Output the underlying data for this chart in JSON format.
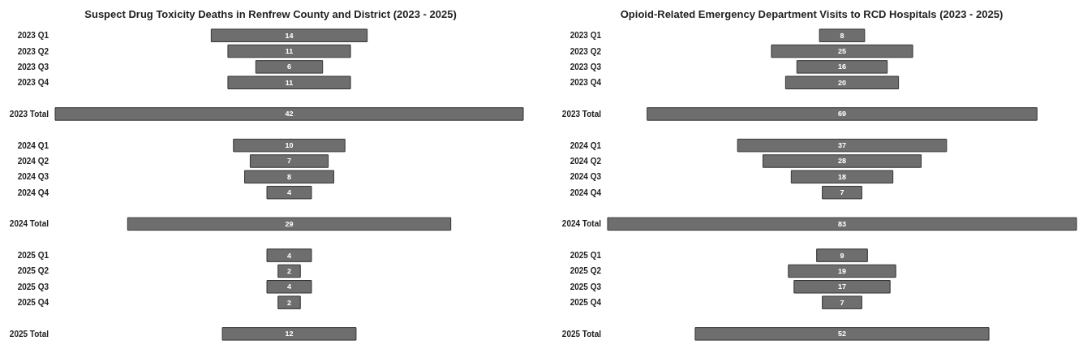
{
  "chart_data": [
    {
      "type": "other",
      "title": "Suspect Drug Toxicity Deaths in Renfrew County and District (2023 - 2025)",
      "data_labels": true,
      "categories": [
        "2023 Q1",
        "2023 Q2",
        "2023 Q3",
        "2023 Q4",
        null,
        "2023 Total",
        null,
        "2024 Q1",
        "2024 Q2",
        "2024 Q3",
        "2024 Q4",
        null,
        "2024 Total",
        null,
        "2025 Q1",
        "2025 Q2",
        "2025 Q3",
        "2025 Q4",
        null,
        "2025 Total"
      ],
      "values": [
        14,
        11,
        6,
        11,
        null,
        42,
        null,
        10,
        7,
        8,
        4,
        null,
        29,
        null,
        4,
        2,
        4,
        2,
        null,
        12
      ],
      "color": "#6e6e6e"
    },
    {
      "type": "other",
      "title": "Opioid-Related Emergency Department Visits to RCD Hospitals (2023 - 2025)",
      "data_labels": true,
      "categories": [
        "2023 Q1",
        "2023 Q2",
        "2023 Q3",
        "2023 Q4",
        null,
        "2023 Total",
        null,
        "2024 Q1",
        "2024 Q2",
        "2024 Q3",
        "2024 Q4",
        null,
        "2024 Total",
        null,
        "2025 Q1",
        "2025 Q2",
        "2025 Q3",
        "2025 Q4",
        null,
        "2025 Total"
      ],
      "values": [
        8,
        25,
        16,
        20,
        null,
        69,
        null,
        37,
        28,
        18,
        7,
        null,
        83,
        null,
        9,
        19,
        17,
        7,
        null,
        52
      ],
      "color": "#6e6e6e"
    }
  ]
}
